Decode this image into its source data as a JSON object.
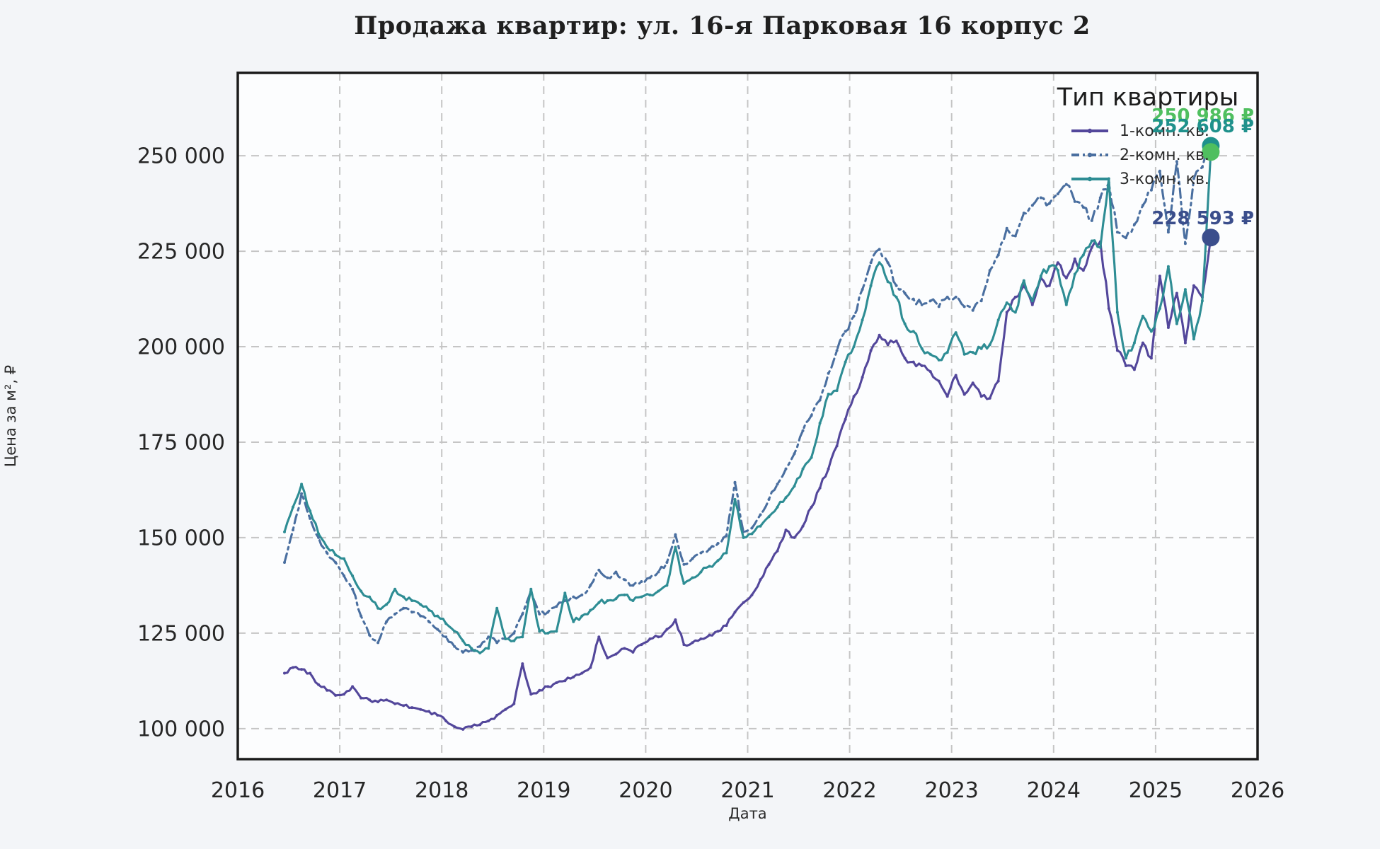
{
  "header": {
    "title": "Продажа квартир: ул. 16-я Парковая 16 корпус 2"
  },
  "colors": {
    "page_background": "#f3f5f8",
    "plot_background": "#fcfdfe",
    "spine": "#1b1b1b",
    "grid": "#c5c5c5",
    "tick_label": "#262626"
  },
  "chart_data": {
    "type": "line",
    "title": "Продажа квартир: ул. 16-я Парковая 16 корпус 2",
    "xlabel": "Дата",
    "ylabel": "Цена за м², ₽",
    "legend_title": "Тип квартиры",
    "legend_position": "upper right",
    "grid": true,
    "grid_style": "dashed",
    "xlim": [
      2016,
      2026
    ],
    "ylim": [
      92000,
      271700
    ],
    "x_unit": "decimal_year",
    "x_start": 2016.4583,
    "x_step": 0.0833333,
    "xticks": [
      {
        "value": 2016,
        "label": "2016"
      },
      {
        "value": 2017,
        "label": "2017"
      },
      {
        "value": 2018,
        "label": "2018"
      },
      {
        "value": 2019,
        "label": "2019"
      },
      {
        "value": 2020,
        "label": "2020"
      },
      {
        "value": 2021,
        "label": "2021"
      },
      {
        "value": 2022,
        "label": "2022"
      },
      {
        "value": 2023,
        "label": "2023"
      },
      {
        "value": 2024,
        "label": "2024"
      },
      {
        "value": 2025,
        "label": "2025"
      },
      {
        "value": 2026,
        "label": "2026"
      }
    ],
    "yticks": [
      {
        "value": 100000,
        "label": "100 000"
      },
      {
        "value": 125000,
        "label": "125 000"
      },
      {
        "value": 150000,
        "label": "150 000"
      },
      {
        "value": 175000,
        "label": "175 000"
      },
      {
        "value": 200000,
        "label": "200 000"
      },
      {
        "value": 225000,
        "label": "225 000"
      },
      {
        "value": 250000,
        "label": "250 000"
      }
    ],
    "series": [
      {
        "name": "1-комн. кв.",
        "color": "#53479b",
        "line_style": "solid",
        "marker_color": "#3b4e8c",
        "final_value": 228593,
        "final_label": "228 593 ₽",
        "values": [
          114500,
          116000,
          115500,
          114500,
          111500,
          110000,
          108700,
          109000,
          111000,
          108000,
          107500,
          107000,
          107500,
          106500,
          106000,
          105500,
          105000,
          104500,
          103500,
          102000,
          100500,
          99800,
          100500,
          101000,
          102000,
          103500,
          105000,
          106500,
          117000,
          109000,
          110000,
          111000,
          112000,
          112500,
          113500,
          114500,
          116000,
          124000,
          118500,
          119500,
          121000,
          120000,
          122000,
          123500,
          124000,
          126000,
          128500,
          122000,
          122500,
          123500,
          124500,
          125500,
          127000,
          130500,
          133000,
          135000,
          139000,
          143000,
          146500,
          152000,
          150000,
          153000,
          158000,
          163000,
          168000,
          174000,
          181000,
          187000,
          192000,
          199000,
          203000,
          200500,
          201500,
          197000,
          196000,
          195000,
          193500,
          191000,
          187000,
          192500,
          187500,
          190500,
          187000,
          186500,
          191000,
          209000,
          213000,
          216000,
          211000,
          218000,
          216000,
          222000,
          218000,
          223000,
          220000,
          226000,
          227500,
          210000,
          199000,
          195000,
          194000,
          201000,
          197000,
          218500,
          205000,
          214000,
          201000,
          216000,
          213000,
          228593
        ]
      },
      {
        "name": "2-комн. кв.",
        "color": "#4a6fa0",
        "line_style": "dashdot",
        "marker_color": "#1f918c",
        "final_value": 252608,
        "final_label": "252 608 ₽",
        "values": [
          143500,
          152000,
          161500,
          155000,
          150000,
          146000,
          143500,
          140000,
          136500,
          129500,
          124500,
          122500,
          128000,
          130000,
          131500,
          130500,
          129500,
          128000,
          126000,
          124000,
          121500,
          120000,
          120500,
          121500,
          124000,
          122500,
          123500,
          125000,
          130000,
          136000,
          130000,
          130500,
          132000,
          133500,
          134500,
          135000,
          137500,
          141500,
          139500,
          141000,
          139000,
          137500,
          138500,
          139500,
          141000,
          143500,
          150800,
          143000,
          144500,
          146000,
          147000,
          148500,
          150500,
          164500,
          151500,
          152500,
          156000,
          160000,
          164000,
          168000,
          172000,
          178000,
          182000,
          186000,
          193000,
          199000,
          204000,
          208000,
          215000,
          222000,
          225500,
          222000,
          216000,
          214000,
          212500,
          211000,
          212000,
          210500,
          213000,
          213000,
          210500,
          209500,
          212000,
          220000,
          224000,
          231000,
          229000,
          235000,
          237000,
          239000,
          237500,
          240000,
          242500,
          238000,
          236500,
          233000,
          239000,
          243000,
          230000,
          228500,
          232000,
          237000,
          241000,
          246000,
          230000,
          248500,
          227000,
          244000,
          247000,
          252608
        ]
      },
      {
        "name": "3-комн. кв.",
        "color": "#2e8d94",
        "line_style": "solid",
        "marker_color": "#4fbf5f",
        "final_value": 250986,
        "final_label": "250 986 ₽",
        "values": [
          151500,
          158000,
          164000,
          157000,
          151000,
          147500,
          145500,
          144500,
          140000,
          136000,
          134500,
          131500,
          132500,
          136500,
          134500,
          133500,
          132500,
          131000,
          129500,
          127500,
          125500,
          123000,
          121000,
          119800,
          121000,
          131500,
          123500,
          123000,
          124000,
          136500,
          125500,
          125000,
          125500,
          135500,
          128000,
          129500,
          131000,
          133000,
          133500,
          134000,
          135000,
          133500,
          134500,
          135000,
          136000,
          137500,
          147500,
          138000,
          139500,
          141000,
          142500,
          144000,
          146000,
          160000,
          150000,
          151000,
          153000,
          155500,
          158000,
          160500,
          163500,
          168000,
          171000,
          180000,
          187600,
          188500,
          196000,
          200000,
          207000,
          216000,
          222000,
          217000,
          213000,
          206000,
          204000,
          199500,
          198000,
          196500,
          198500,
          203700,
          198000,
          198500,
          199500,
          200500,
          207000,
          211500,
          209000,
          217300,
          212000,
          218500,
          221000,
          220000,
          211000,
          219000,
          224000,
          227700,
          226000,
          244000,
          209000,
          197000,
          201000,
          208000,
          204000,
          210000,
          221000,
          206000,
          215000,
          202000,
          212000,
          250986
        ]
      }
    ]
  }
}
